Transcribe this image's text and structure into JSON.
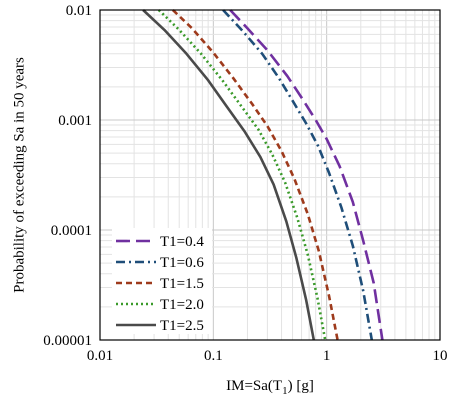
{
  "chart_data": {
    "type": "line",
    "xlabel": "IM=Sa(T1) [g]",
    "xlabel_parts": {
      "main": "IM=Sa(T",
      "sub": "1",
      "tail": ") [g]"
    },
    "ylabel": "Probability of exceeding Sa in 50 years",
    "x_scale": "log",
    "y_scale": "log",
    "xlim": [
      0.01,
      10
    ],
    "ylim": [
      1e-05,
      0.01
    ],
    "x_ticks": [
      {
        "value": 0.01,
        "label": "0.01"
      },
      {
        "value": 0.1,
        "label": "0.1"
      },
      {
        "value": 1,
        "label": "1"
      },
      {
        "value": 10,
        "label": "10"
      }
    ],
    "y_ticks": [
      {
        "value": 1e-05,
        "label": "0.00001"
      },
      {
        "value": 0.0001,
        "label": "0.0001"
      },
      {
        "value": 0.001,
        "label": "0.001"
      },
      {
        "value": 0.01,
        "label": "0.01"
      }
    ],
    "grid": true,
    "minor_grid": true,
    "legend": "bottom-left",
    "series": [
      {
        "name": "T1=0.4",
        "color": "#7030a0",
        "dash": "long-dash",
        "x": [
          0.141,
          0.2,
          0.3,
          0.45,
          0.6,
          0.8,
          1.0,
          1.3,
          1.7,
          2.1,
          2.6,
          3.1
        ],
        "y": [
          0.01,
          0.0068,
          0.0043,
          0.0025,
          0.0016,
          0.001,
          0.00067,
          0.00038,
          0.00018,
          8e-05,
          3.3e-05,
          1e-05
        ]
      },
      {
        "name": "T1=0.6",
        "color": "#1f4e79",
        "dash": "dash-dot",
        "x": [
          0.122,
          0.18,
          0.27,
          0.38,
          0.5,
          0.66,
          0.84,
          1.05,
          1.35,
          1.7,
          2.1,
          2.5
        ],
        "y": [
          0.01,
          0.0065,
          0.004,
          0.0024,
          0.0015,
          0.00093,
          0.00058,
          0.00033,
          0.00016,
          7.2e-05,
          2.8e-05,
          1e-05
        ]
      },
      {
        "name": "T1=1.5",
        "color": "#9e3a1c",
        "dash": "short-dash",
        "x": [
          0.044,
          0.065,
          0.1,
          0.15,
          0.22,
          0.3,
          0.4,
          0.52,
          0.68,
          0.85,
          1.05,
          1.25
        ],
        "y": [
          0.01,
          0.0068,
          0.0041,
          0.0024,
          0.0014,
          0.00088,
          0.00052,
          0.00029,
          0.00014,
          6.5e-05,
          2.5e-05,
          1e-05
        ]
      },
      {
        "name": "T1=2.0",
        "color": "#3a9a2a",
        "dash": "dot",
        "x": [
          0.033,
          0.05,
          0.078,
          0.12,
          0.18,
          0.25,
          0.33,
          0.43,
          0.55,
          0.68,
          0.83,
          0.97
        ],
        "y": [
          0.01,
          0.0066,
          0.004,
          0.0023,
          0.0013,
          0.00082,
          0.00049,
          0.00027,
          0.00013,
          6e-05,
          2.4e-05,
          1e-05
        ]
      },
      {
        "name": "T1=2.5",
        "color": "#4a4a4a",
        "dash": "solid",
        "x": [
          0.024,
          0.037,
          0.058,
          0.09,
          0.13,
          0.19,
          0.26,
          0.34,
          0.44,
          0.54,
          0.66,
          0.77
        ],
        "y": [
          0.01,
          0.0066,
          0.004,
          0.0023,
          0.00135,
          0.00078,
          0.00046,
          0.00026,
          0.00012,
          5.6e-05,
          2.3e-05,
          1e-05
        ]
      }
    ]
  }
}
